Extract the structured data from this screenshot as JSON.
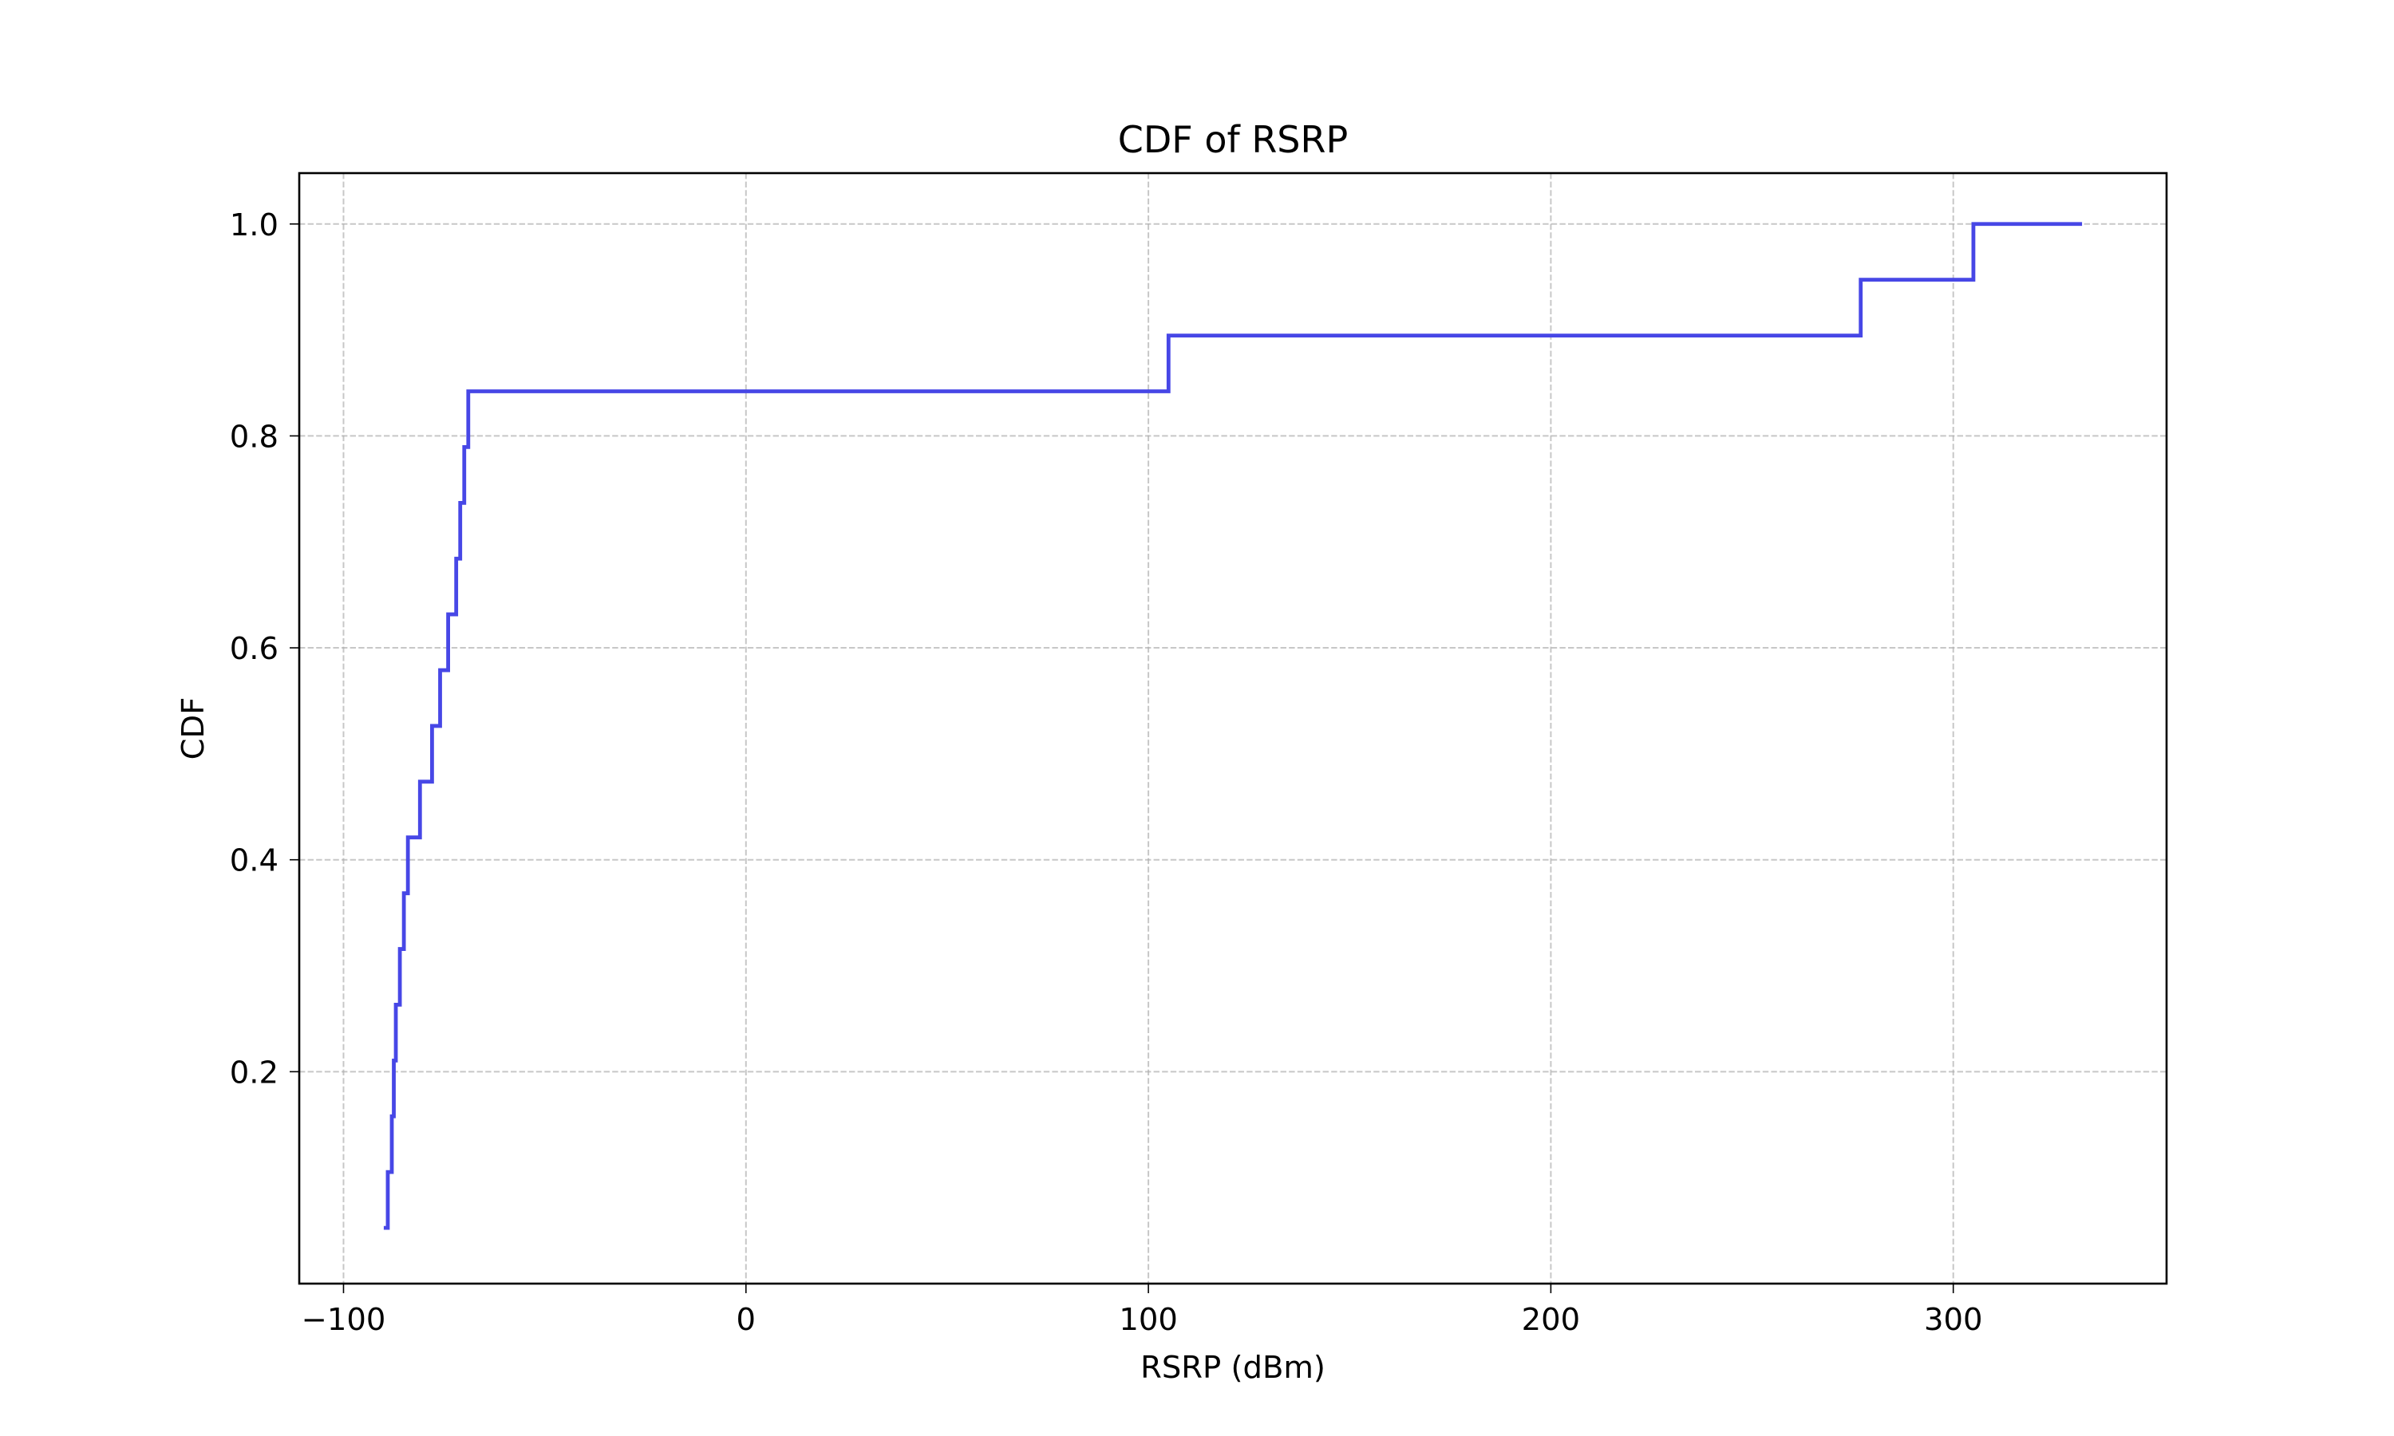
{
  "chart_data": {
    "type": "line",
    "drawstyle": "steps-post",
    "title": "CDF of RSRP",
    "xlabel": "RSRP (dBm)",
    "ylabel": "CDF",
    "xlim": [
      -111,
      353
    ],
    "ylim": [
      -0.0,
      1.048
    ],
    "x_ticks": [
      -100,
      0,
      100,
      200,
      300
    ],
    "x_tick_labels": [
      "−100",
      "0",
      "100",
      "200",
      "300"
    ],
    "y_ticks": [
      0.2,
      0.4,
      0.6,
      0.8,
      1.0
    ],
    "y_tick_labels": [
      "0.2",
      "0.4",
      "0.6",
      "0.8",
      "1.0"
    ],
    "grid": true,
    "series": [
      {
        "name": "CDF",
        "color": "#4747e6",
        "x": [
          -90,
          -89,
          -88,
          -87.5,
          -87,
          -86,
          -85,
          -84,
          -81,
          -78,
          -76,
          -74,
          -72,
          -71,
          -70,
          -69,
          105,
          277,
          305,
          332
        ],
        "y": [
          0.0526,
          0.1053,
          0.1579,
          0.2105,
          0.2632,
          0.3158,
          0.3684,
          0.4211,
          0.4737,
          0.5263,
          0.5789,
          0.6316,
          0.6842,
          0.7368,
          0.7895,
          0.8421,
          0.8947,
          0.9474,
          1.0,
          1.0
        ]
      }
    ]
  }
}
